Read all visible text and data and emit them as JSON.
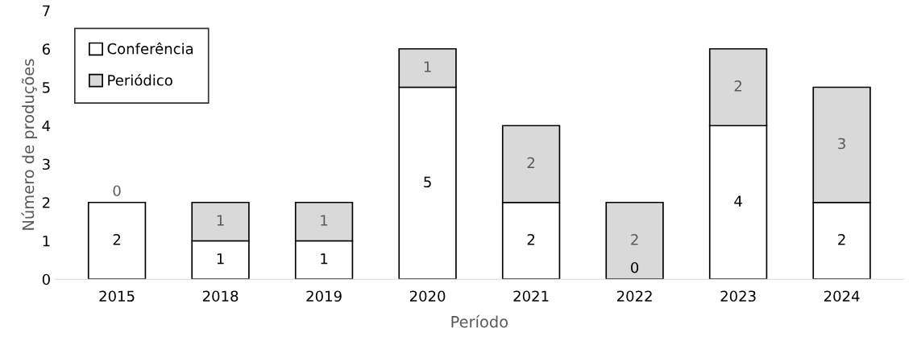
{
  "chart_data": {
    "type": "bar",
    "stacked": true,
    "xlabel": "Período",
    "ylabel": "Número de produções",
    "categories": [
      "2015",
      "2018",
      "2019",
      "2020",
      "2021",
      "2022",
      "2023",
      "2024"
    ],
    "series": [
      {
        "name": "Conferência",
        "color": "#ffffff",
        "values": [
          2,
          1,
          1,
          5,
          2,
          0,
          4,
          2
        ],
        "value_labels": [
          "2",
          "1",
          "1",
          "5",
          "2",
          null,
          "4",
          "2"
        ]
      },
      {
        "name": "Periódico",
        "color": "#d9d9d9",
        "values": [
          0,
          1,
          1,
          1,
          2,
          2,
          2,
          3
        ],
        "value_labels": [
          "0",
          "1",
          "1",
          "1",
          "2",
          "2",
          "2",
          "3"
        ]
      }
    ],
    "annotations": [
      {
        "text": "0",
        "x": "2022",
        "y": 0
      }
    ],
    "ylim": [
      0,
      7
    ],
    "yticks": [
      0,
      1,
      2,
      3,
      4,
      5,
      6,
      7
    ],
    "grid": false,
    "legend": "top left"
  }
}
